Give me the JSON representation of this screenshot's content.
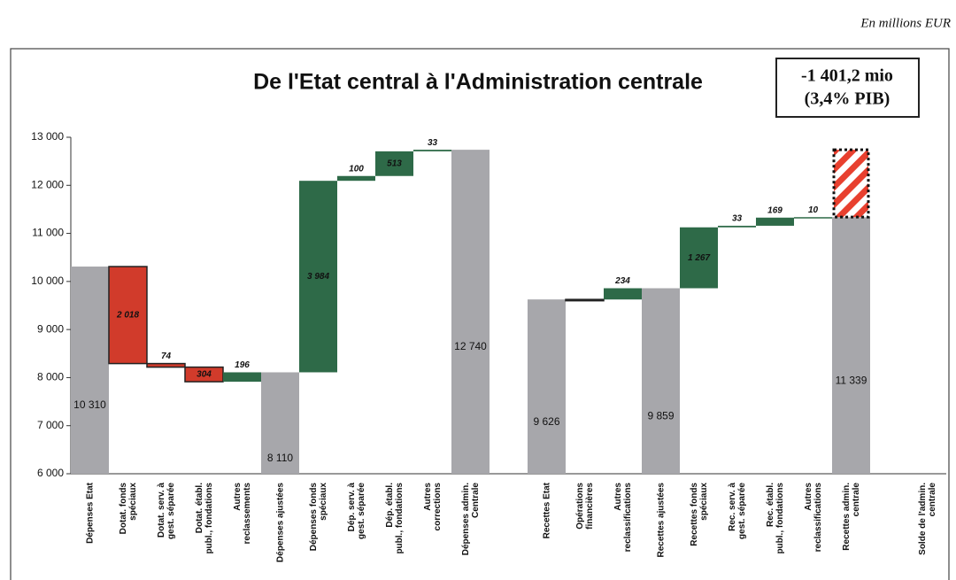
{
  "chart_data": {
    "type": "waterfall",
    "unit_note": "En millions EUR",
    "title": "De l'Etat central à l'Administration centrale",
    "annotation": {
      "lines": [
        "-1 401,2 mio",
        "(3,4% PIB)"
      ],
      "value": -1401.2
    },
    "categories": [
      "Dépenses Etat",
      "Dotat. fonds spéciaux",
      "Dotat. serv. à gest. séparée",
      "Dotat. établ. publ., fondations",
      "Autres reclassements",
      "Dépenses ajustées",
      "Dépenses fonds spéciaux",
      "Dép. serv. à gest. séparée",
      "Dép. établ. publ., fondations",
      "Autres corrections",
      "Dépenses admin. Centrale",
      null,
      "Recettes Etat",
      "Opérations financières",
      "Autres reclassifications",
      "Recettes ajustées",
      "Recettes fonds spéciaux",
      "Rec. serv. à gest. séparée",
      "Rec. établ. publ., fondations",
      "Autres reclassifications",
      "Recettes admin. centrale",
      null,
      "Solde de l'admin. centrale"
    ],
    "values": [
      10310,
      -2018,
      -74,
      -304,
      196,
      8110,
      3984,
      100,
      513,
      33,
      12740,
      null,
      9626,
      -1,
      234,
      9859,
      1267,
      33,
      169,
      10,
      11339,
      null,
      null
    ],
    "value_labels": [
      "10 310",
      "2 018",
      "74",
      "304",
      "196",
      "8 110",
      "3 984",
      "100",
      "513",
      "33",
      "12 740",
      null,
      "9 626",
      null,
      "234",
      "9 859",
      "1 267",
      "33",
      "169",
      "10",
      "11 339",
      null,
      null
    ],
    "kinds": [
      "total",
      "delta",
      "delta",
      "delta",
      "delta",
      "total",
      "delta",
      "delta",
      "delta",
      "delta",
      "total",
      null,
      "total",
      "delta",
      "delta",
      "total",
      "delta",
      "delta",
      "delta",
      "delta",
      "total",
      null,
      null
    ],
    "colors": {
      "total": "#a7a7ab",
      "increase": "#2e6a48",
      "decrease": "#d13b2b",
      "deficit": "#e8402f"
    },
    "ylim": [
      6000,
      13000
    ],
    "yticks": [
      {
        "value": 6000,
        "label": "6 000"
      },
      {
        "value": 7000,
        "label": "7 000"
      },
      {
        "value": 8000,
        "label": "8 000"
      },
      {
        "value": 9000,
        "label": "9 000"
      },
      {
        "value": 10000,
        "label": "10 000"
      },
      {
        "value": 11000,
        "label": "11 000"
      },
      {
        "value": 12000,
        "label": "12 000"
      },
      {
        "value": 13000,
        "label": "13 000"
      }
    ],
    "grid": false
  }
}
